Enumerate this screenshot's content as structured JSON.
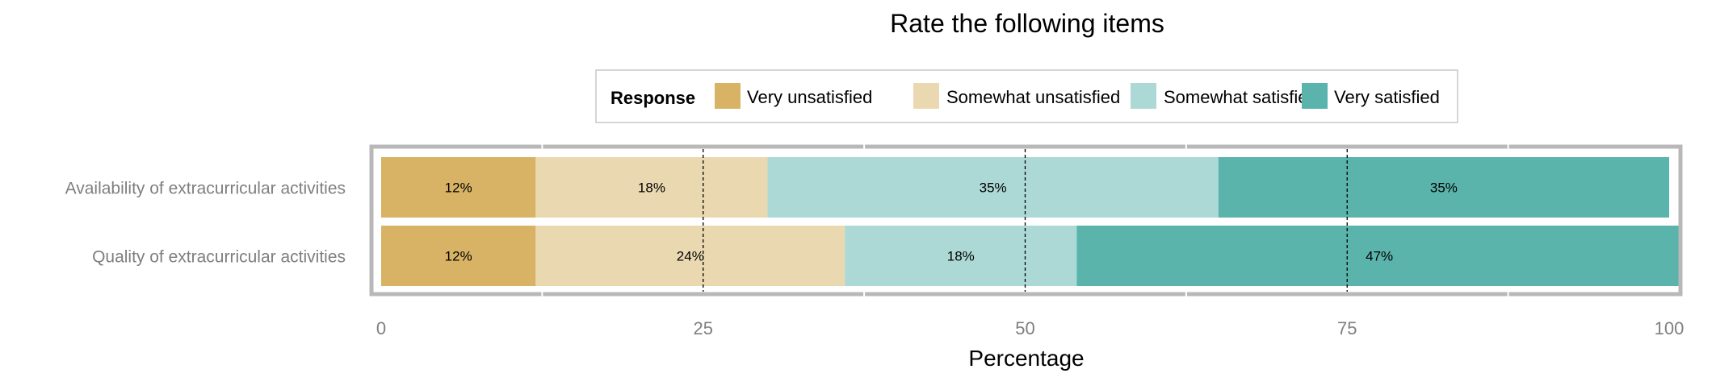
{
  "chart_data": {
    "type": "bar",
    "orientation": "horizontal",
    "stacked": true,
    "title": "Rate the following items",
    "xlabel": "Percentage",
    "ylabel": "",
    "xlim": [
      0,
      100
    ],
    "xticks": [
      0,
      25,
      50,
      75,
      100
    ],
    "categories": [
      "Availability of extracurricular activities",
      "Quality of extracurricular activities"
    ],
    "legend": {
      "title": "Response",
      "position": "top"
    },
    "series": [
      {
        "name": "Very unsatisfied",
        "color": "#D8B365",
        "values": [
          12,
          12
        ],
        "labels": [
          "12%",
          "12%"
        ]
      },
      {
        "name": "Somewhat unsatisfied",
        "color": "#EAD9B0",
        "values": [
          18,
          24
        ],
        "labels": [
          "18%",
          "24%"
        ]
      },
      {
        "name": "Somewhat satisfied",
        "color": "#ACD9D5",
        "values": [
          35,
          18
        ],
        "labels": [
          "35%",
          "18%"
        ]
      },
      {
        "name": "Very satisfied",
        "color": "#5AB4AC",
        "values": [
          35,
          47
        ],
        "labels": [
          "35%",
          "47%"
        ]
      }
    ],
    "reference_lines": [
      25,
      50,
      75
    ],
    "grid": true
  }
}
